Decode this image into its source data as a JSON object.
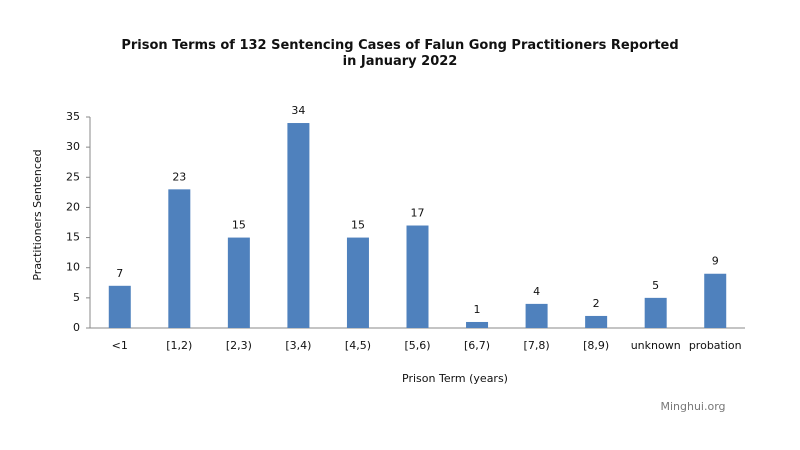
{
  "chart_data": {
    "type": "bar",
    "title": "Prison Terms of 132 Sentencing Cases of Falun Gong Practitioners Reported in January 2022",
    "x_label": "Prison Term (years)",
    "y_label": "Practitioners Sentenced",
    "source": "Minghui.org",
    "categories": [
      "<1",
      "[1,2)",
      "[2,3)",
      "[3,4)",
      "[4,5)",
      "[5,6)",
      "[6,7)",
      "[7,8)",
      "[8,9)",
      "unknown",
      "probation"
    ],
    "values": [
      7,
      23,
      15,
      34,
      15,
      17,
      1,
      4,
      2,
      5,
      9
    ],
    "color": "#4f81bd",
    "ylim": [
      0,
      35
    ],
    "yticks": [
      0,
      5,
      10,
      15,
      20,
      25,
      30,
      35
    ],
    "grid": false
  }
}
